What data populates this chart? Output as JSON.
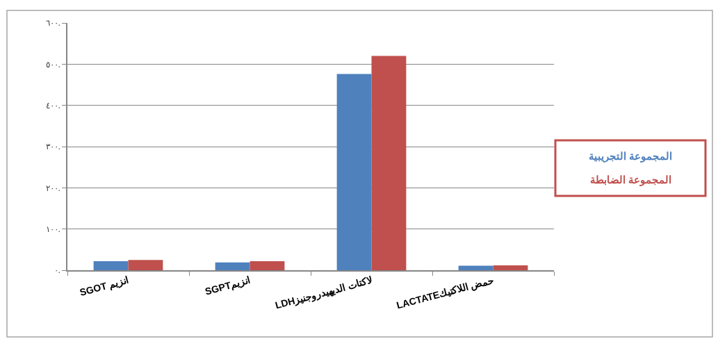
{
  "chart_data": {
    "type": "bar",
    "categories": [
      "انزيم SGOT",
      "انزيمSGPT",
      "لاكتات الديهيدروجنيزLDH",
      "حمض اللاكتيكLACTATE"
    ],
    "series": [
      {
        "name": "المجموعة التجريبية",
        "color": "#4f81bd",
        "values": [
          22,
          19,
          476,
          11
        ]
      },
      {
        "name": "المجموعة الضابطة",
        "color": "#c0504d",
        "values": [
          25,
          22,
          520,
          12
        ]
      }
    ],
    "ylim": [
      0,
      600
    ],
    "yticks": [
      {
        "value": 0,
        "label": "٠."
      },
      {
        "value": 100,
        "label": "١٠٠."
      },
      {
        "value": 200,
        "label": "٢٠٠."
      },
      {
        "value": 300,
        "label": "٣٠٠."
      },
      {
        "value": 400,
        "label": "٤٠٠."
      },
      {
        "value": 500,
        "label": "٥٠٠."
      },
      {
        "value": 600,
        "label": "٦٠٠."
      }
    ],
    "grid": "y",
    "legend": "right"
  }
}
